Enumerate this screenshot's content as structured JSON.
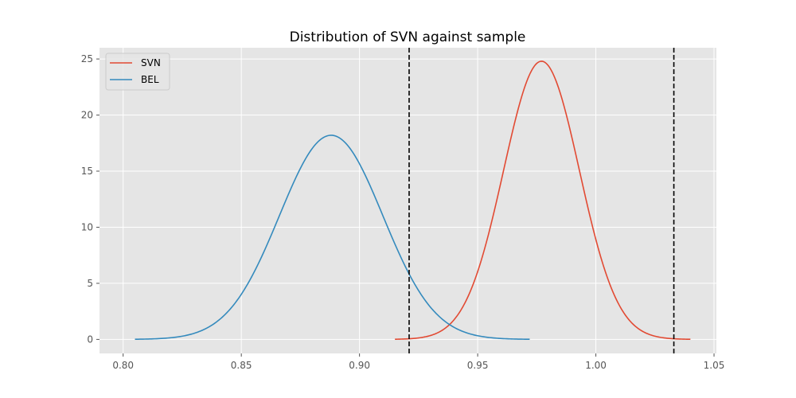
{
  "chart_data": {
    "type": "line",
    "title": "Distribution of SVN against sample",
    "xlabel": "",
    "ylabel": "",
    "xlim": [
      0.79,
      1.051
    ],
    "ylim": [
      -1.25,
      26.0
    ],
    "xticks": [
      0.8,
      0.85,
      0.9,
      0.95,
      1.0,
      1.05
    ],
    "xtick_labels": [
      "0.80",
      "0.85",
      "0.90",
      "0.95",
      "1.00",
      "1.05"
    ],
    "yticks": [
      0,
      5,
      10,
      15,
      20,
      25
    ],
    "ytick_labels": [
      "0",
      "5",
      "10",
      "15",
      "20",
      "25"
    ],
    "grid": true,
    "legend_position": "top-left",
    "series": [
      {
        "name": "SVN",
        "color": "#E24A33",
        "distribution": "normal",
        "mean": 0.977,
        "std": 0.01607,
        "x_range": [
          0.915,
          1.04
        ],
        "peak": 24.8
      },
      {
        "name": "BEL",
        "color": "#348ABD",
        "distribution": "normal",
        "mean": 0.888,
        "std": 0.02187,
        "x_range": [
          0.805,
          0.972
        ],
        "peak": 18.2
      }
    ],
    "vlines": [
      {
        "x": 0.921,
        "color": "#000000",
        "style": "dashed"
      },
      {
        "x": 1.033,
        "color": "#000000",
        "style": "dashed"
      }
    ]
  }
}
